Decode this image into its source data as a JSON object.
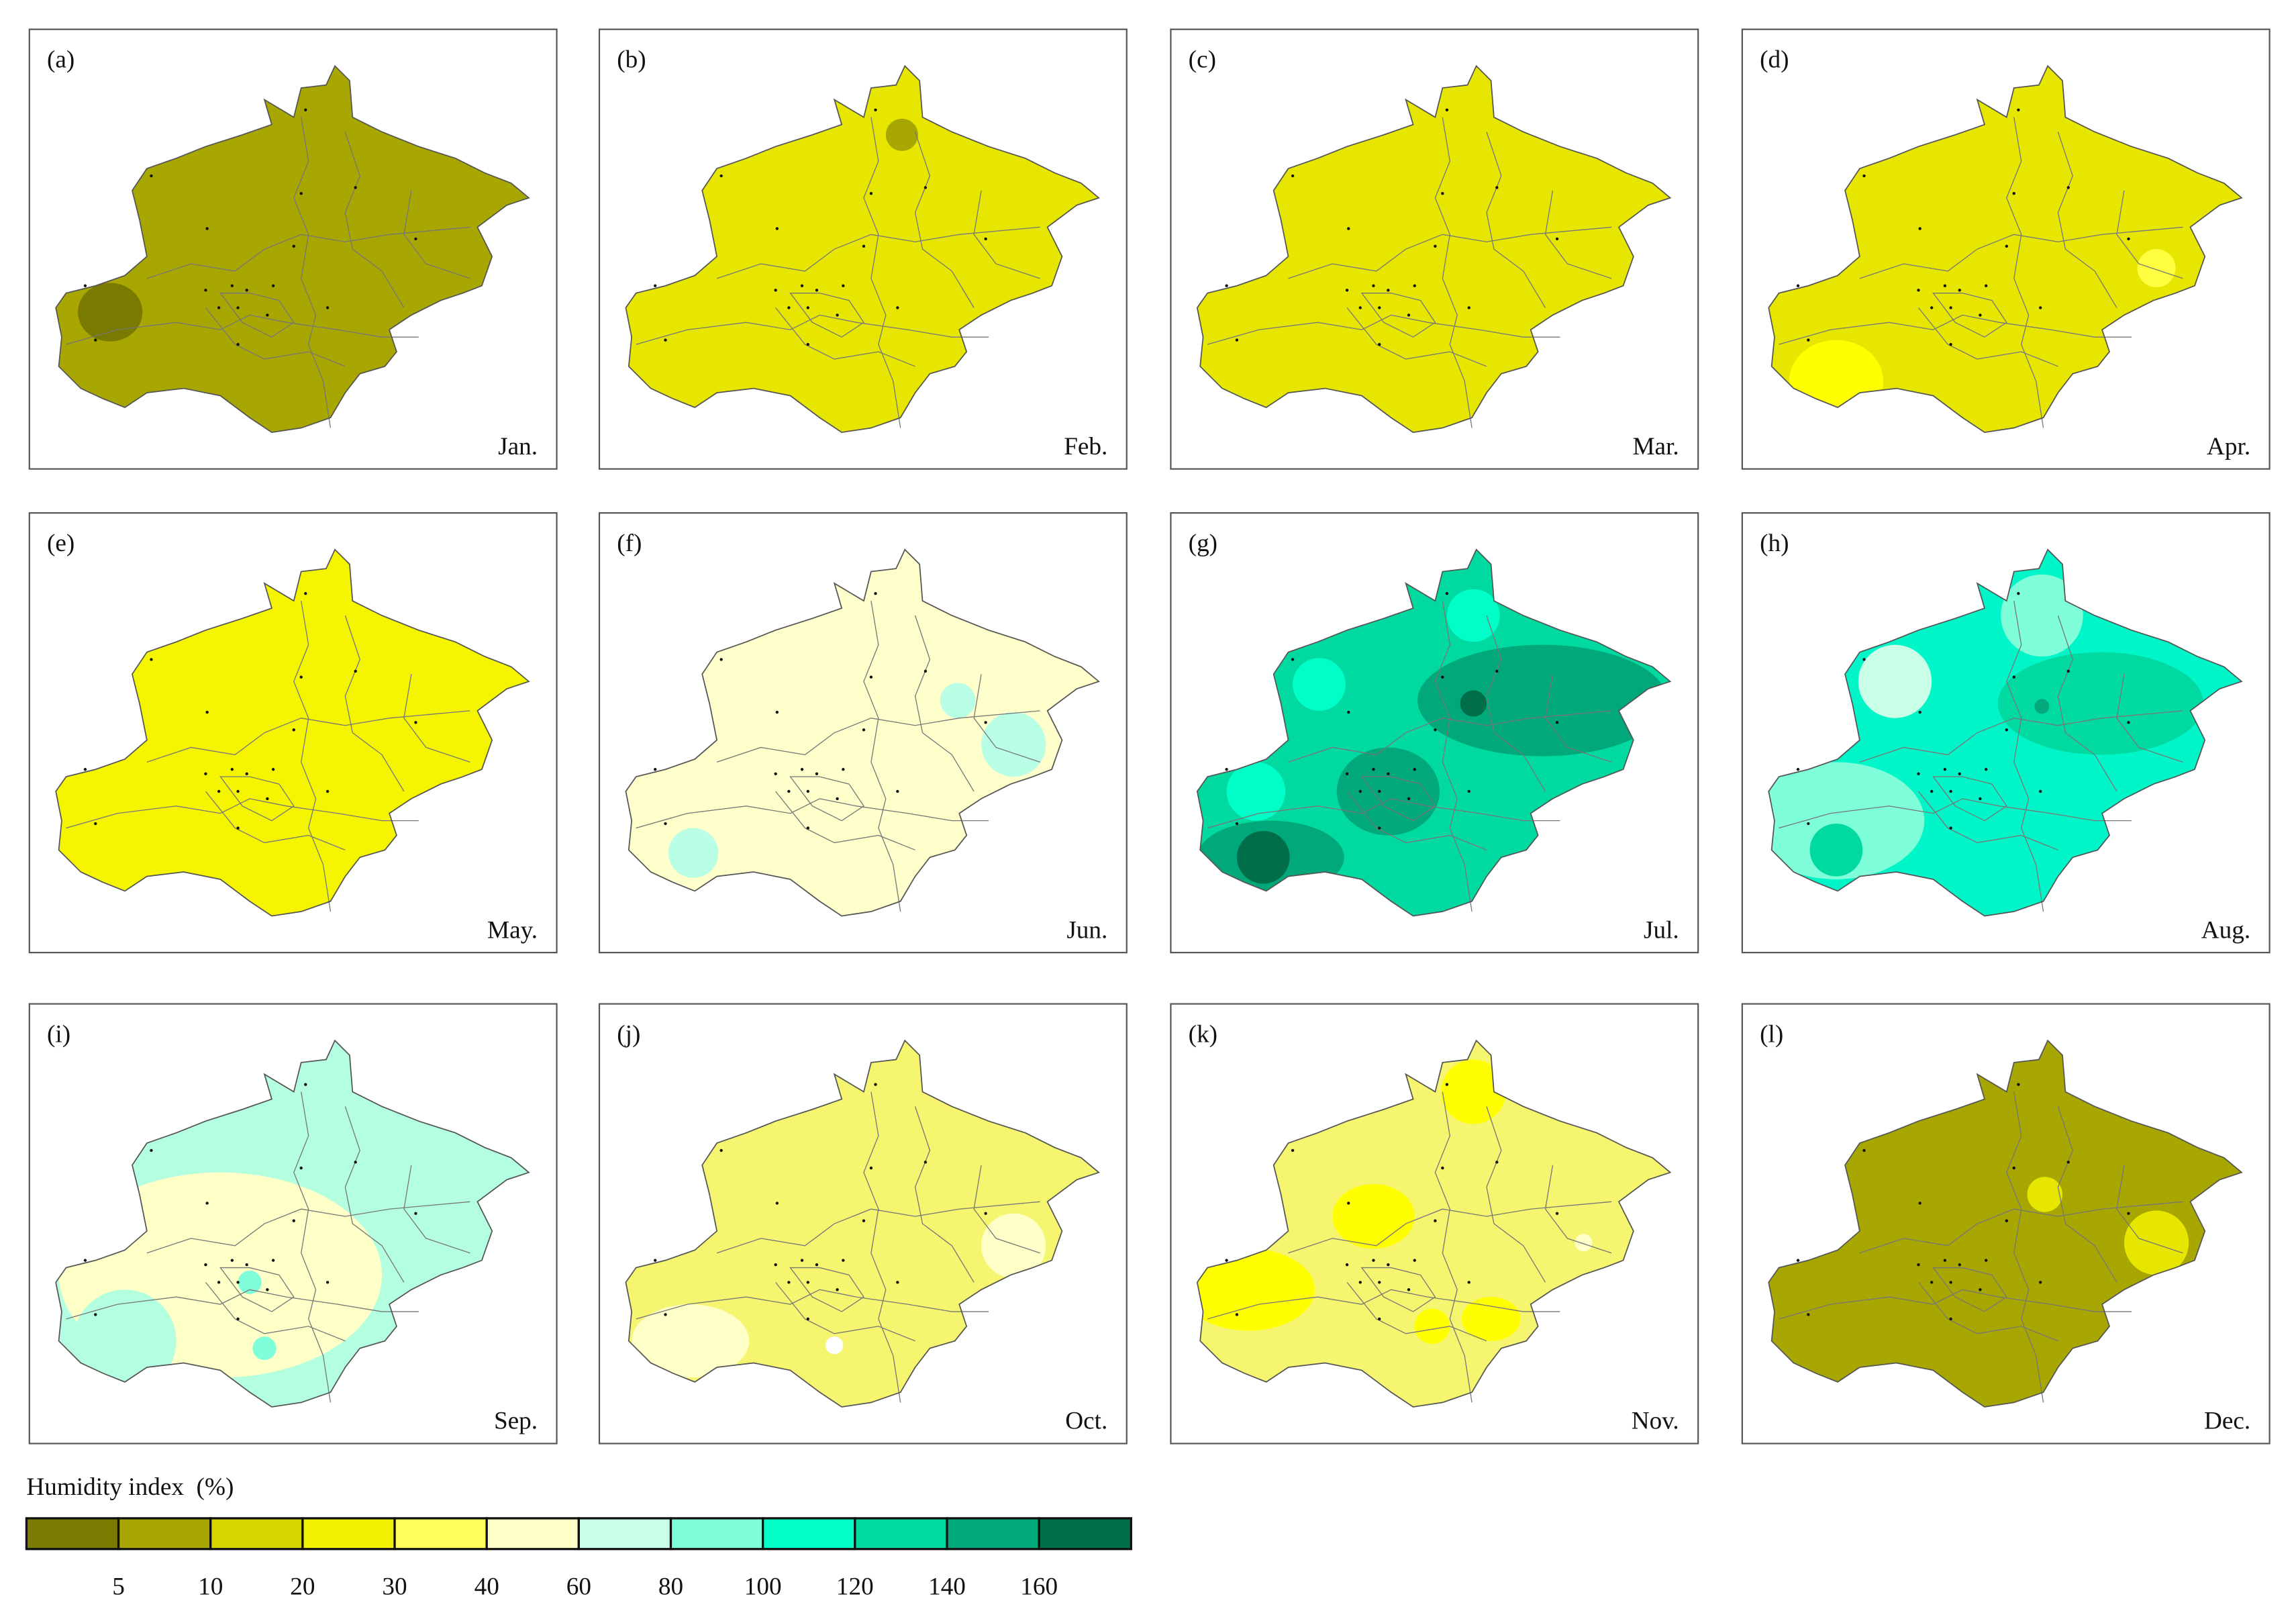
{
  "panels": [
    {
      "label": "(a)",
      "month": "Jan.",
      "color": "#a8a600",
      "spot_colors": [
        "#7b7a00"
      ]
    },
    {
      "label": "(b)",
      "month": "Feb.",
      "color": "#e6e600",
      "spot_colors": [
        "#a8a600"
      ]
    },
    {
      "label": "(c)",
      "month": "Mar.",
      "color": "#e6e600",
      "spot_colors": []
    },
    {
      "label": "(d)",
      "month": "Apr.",
      "color": "#e6e600",
      "spot_colors": [
        "#ffff40",
        "#ffff00"
      ]
    },
    {
      "label": "(e)",
      "month": "May.",
      "color": "#f5f500",
      "spot_colors": []
    },
    {
      "label": "(f)",
      "month": "Jun.",
      "color": "#ffffcc",
      "spot_colors": [
        "#b8ffe6",
        "#b8ffe6",
        "#b8ffe6"
      ]
    },
    {
      "label": "(g)",
      "month": "Jul.",
      "color": "#00d9a0",
      "spot_colors": [
        "#00a87a",
        "#00a87a",
        "#00a87a",
        "#006e48",
        "#006e48",
        "#00ffc8",
        "#00ffc8",
        "#00ffc8"
      ]
    },
    {
      "label": "(h)",
      "month": "Aug.",
      "color": "#00f5c8",
      "spot_colors": [
        "#00d9a0",
        "#c8ffe6",
        "#7fffd9",
        "#7fffd9",
        "#00d9a0",
        "#00a87a"
      ]
    },
    {
      "label": "(i)",
      "month": "Sep.",
      "color": "#b3ffe0",
      "spot_colors": [
        "#ffffc8",
        "#b3ffe0",
        "#7fffd9",
        "#7fffd9"
      ]
    },
    {
      "label": "(j)",
      "month": "Oct.",
      "color": "#f5f570",
      "spot_colors": [
        "#ffffc8",
        "#ffffc8",
        "#ffffff"
      ]
    },
    {
      "label": "(k)",
      "month": "Nov.",
      "color": "#f5f570",
      "spot_colors": [
        "#ffff00",
        "#ffff00",
        "#ffff00",
        "#ffff00",
        "#ffff00",
        "#ffffc8"
      ]
    },
    {
      "label": "(l)",
      "month": "Dec.",
      "color": "#a8a600",
      "spot_colors": [
        "#e6e600",
        "#e6e600"
      ]
    }
  ],
  "legend": {
    "title": "Humidity index  (%)",
    "colors": [
      "#7b7a00",
      "#a8a600",
      "#d6d500",
      "#f2f200",
      "#ffff5a",
      "#ffffc8",
      "#c8ffe6",
      "#7fffd9",
      "#00ffc8",
      "#00d9a0",
      "#00a87a",
      "#006e48"
    ],
    "labels": [
      5,
      10,
      20,
      30,
      40,
      60,
      80,
      100,
      120,
      140,
      160
    ]
  }
}
